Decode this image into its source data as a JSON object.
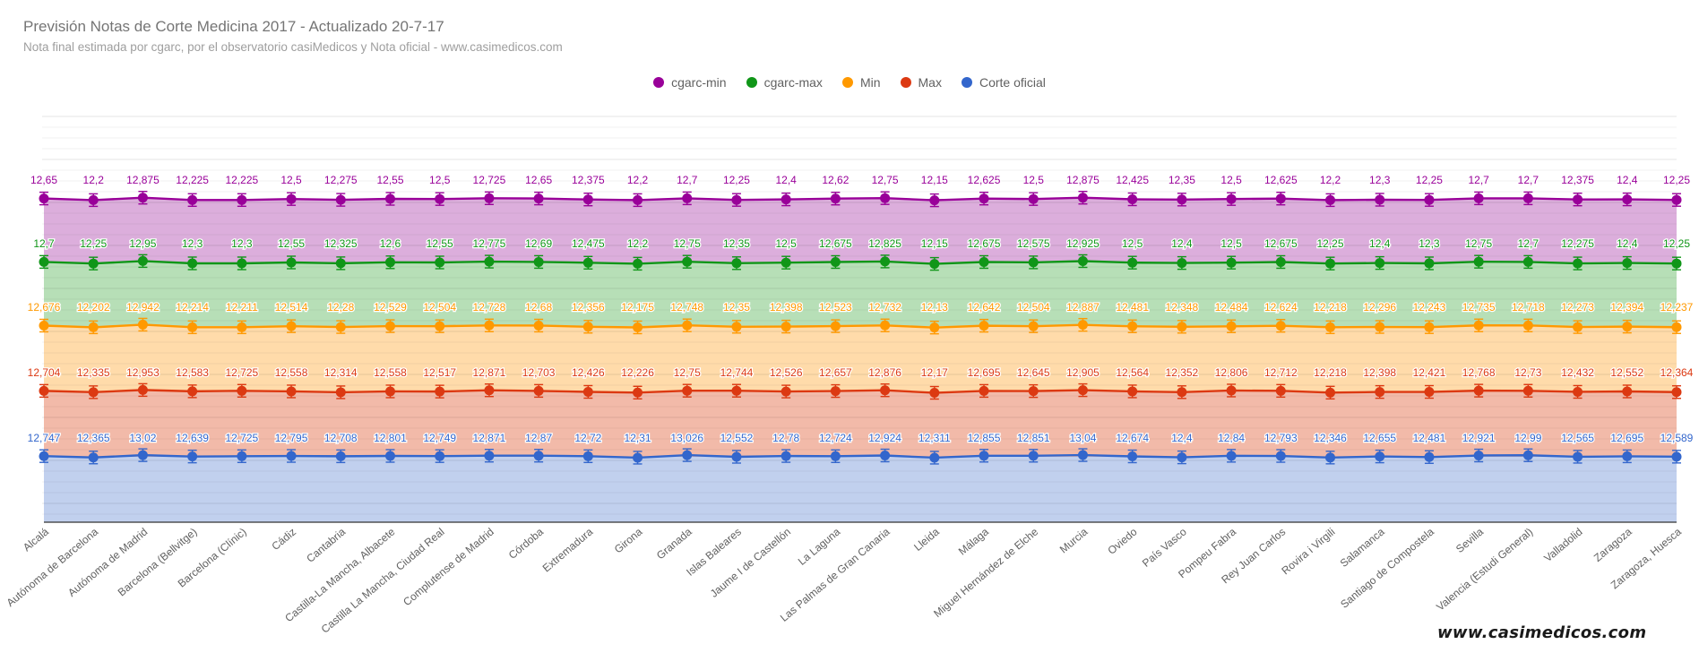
{
  "title": "Previsión Notas de Corte Medicina 2017 - Actualizado 20-7-17",
  "subtitle": "Nota final estimada por cgarc, por el observatorio casiMedicos y Nota oficial  - www.casimedicos.com",
  "watermark": "www.casimedicos.com",
  "chart_data": {
    "type": "line",
    "categories": [
      "Alcalá",
      "Autónoma de Barcelona",
      "Autónoma de Madrid",
      "Barcelona (Bellvitge)",
      "Barcelona (Clínic)",
      "Cádiz",
      "Cantabria",
      "Castilla-La Mancha, Albacete",
      "Castilla La Mancha, Ciudad Real",
      "Complutense de Madrid",
      "Córdoba",
      "Extremadura",
      "Girona",
      "Granada",
      "Islas Baleares",
      "Jaume I de Castellón",
      "La Laguna",
      "Las Palmas de Gran Canaria",
      "Lleida",
      "Málaga",
      "Miguel Hernández de Elche",
      "Murcia",
      "Oviedo",
      "País Vasco",
      "Pompeu Fabra",
      "Rey Juan Carlos",
      "Rovira i Virgili",
      "Salamanca",
      "Santiago de Compostela",
      "Sevilla",
      "Valencia (Estudi General)",
      "Valladolid",
      "Zaragoza",
      "Zaragoza, Huesca"
    ],
    "series": [
      {
        "name": "cgarc-min",
        "color": "#990099",
        "values": [
          12.65,
          12.2,
          12.875,
          12.225,
          12.225,
          12.5,
          12.275,
          12.55,
          12.5,
          12.725,
          12.65,
          12.375,
          12.2,
          12.7,
          12.25,
          12.4,
          12.62,
          12.75,
          12.15,
          12.625,
          12.5,
          12.875,
          12.425,
          12.35,
          12.5,
          12.625,
          12.2,
          12.3,
          12.25,
          12.7,
          12.7,
          12.375,
          12.4,
          12.25
        ],
        "labels": [
          "12,65",
          "12,2",
          "12,875",
          "12,225",
          "12,225",
          "12,5",
          "12,275",
          "12,55",
          "12,5",
          "12,725",
          "12,65",
          "12,375",
          "12,2",
          "12,7",
          "12,25",
          "12,4",
          "12,62",
          "12,75",
          "12,15",
          "12,625",
          "12,5",
          "12,875",
          "12,425",
          "12,35",
          "12,5",
          "12,625",
          "12,2",
          "12,3",
          "12,25",
          "12,7",
          "12,7",
          "12,375",
          "12,4",
          "12,25"
        ]
      },
      {
        "name": "cgarc-max",
        "color": "#109618",
        "values": [
          12.7,
          12.25,
          12.95,
          12.3,
          12.3,
          12.55,
          12.325,
          12.6,
          12.55,
          12.775,
          12.69,
          12.475,
          12.2,
          12.75,
          12.35,
          12.5,
          12.675,
          12.825,
          12.15,
          12.675,
          12.575,
          12.925,
          12.5,
          12.4,
          12.5,
          12.675,
          12.25,
          12.4,
          12.3,
          12.75,
          12.7,
          12.275,
          12.4,
          12.25
        ],
        "labels": [
          "12,7",
          "12,25",
          "12,95",
          "12,3",
          "12,3",
          "12,55",
          "12,325",
          "12,6",
          "12,55",
          "12,775",
          "12,69",
          "12,475",
          "12,2",
          "12,75",
          "12,35",
          "12,5",
          "12,675",
          "12,825",
          "12,15",
          "12,675",
          "12,575",
          "12,925",
          "12,5",
          "12,4",
          "12,5",
          "12,675",
          "12,25",
          "12,4",
          "12,3",
          "12,75",
          "12,7",
          "12,275",
          "12,4",
          "12,25"
        ]
      },
      {
        "name": "Min",
        "color": "#ff9900",
        "values": [
          12.676,
          12.202,
          12.942,
          12.214,
          12.211,
          12.514,
          12.28,
          12.529,
          12.504,
          12.728,
          12.68,
          12.356,
          12.175,
          12.748,
          12.35,
          12.398,
          12.523,
          12.732,
          12.13,
          12.642,
          12.504,
          12.887,
          12.481,
          12.348,
          12.484,
          12.624,
          12.218,
          12.296,
          12.243,
          12.735,
          12.718,
          12.273,
          12.394,
          12.237
        ],
        "labels": [
          "12,676",
          "12,202",
          "12,942",
          "12,214",
          "12,211",
          "12,514",
          "12,28",
          "12,529",
          "12,504",
          "12,728",
          "12,68",
          "12,356",
          "12,175",
          "12,748",
          "12,35",
          "12,398",
          "12,523",
          "12,732",
          "12,13",
          "12,642",
          "12,504",
          "12,887",
          "12,481",
          "12,348",
          "12,484",
          "12,624",
          "12,218",
          "12,296",
          "12,243",
          "12,735",
          "12,718",
          "12,273",
          "12,394",
          "12,237"
        ]
      },
      {
        "name": "Max",
        "color": "#dc3912",
        "values": [
          12.704,
          12.335,
          12.953,
          12.583,
          12.725,
          12.558,
          12.314,
          12.558,
          12.517,
          12.871,
          12.703,
          12.426,
          12.226,
          12.75,
          12.744,
          12.526,
          12.657,
          12.876,
          12.17,
          12.695,
          12.645,
          12.905,
          12.564,
          12.352,
          12.806,
          12.712,
          12.218,
          12.398,
          12.421,
          12.768,
          12.73,
          12.432,
          12.552,
          12.364
        ],
        "labels": [
          "12,704",
          "12,335",
          "12,953",
          "12,583",
          "12,725",
          "12,558",
          "12,314",
          "12,558",
          "12,517",
          "12,871",
          "12,703",
          "12,426",
          "12,226",
          "12,75",
          "12,744",
          "12,526",
          "12,657",
          "12,876",
          "12,17",
          "12,695",
          "12,645",
          "12,905",
          "12,564",
          "12,352",
          "12,806",
          "12,712",
          "12,218",
          "12,398",
          "12,421",
          "12,768",
          "12,73",
          "12,432",
          "12,552",
          "12,364"
        ]
      },
      {
        "name": "Corte oficial",
        "color": "#3366cc",
        "values": [
          12.747,
          12.365,
          13.02,
          12.639,
          12.725,
          12.795,
          12.708,
          12.801,
          12.749,
          12.871,
          12.87,
          12.72,
          12.31,
          13.026,
          12.552,
          12.78,
          12.724,
          12.924,
          12.311,
          12.855,
          12.851,
          13.04,
          12.674,
          12.4,
          12.84,
          12.793,
          12.346,
          12.655,
          12.481,
          12.921,
          12.99,
          12.565,
          12.695,
          12.589
        ],
        "labels": [
          "12,747",
          "12,365",
          "13,02",
          "12,639",
          "12,725",
          "12,795",
          "12,708",
          "12,801",
          "12,749",
          "12,871",
          "12,87",
          "12,72",
          "12,31",
          "13,026",
          "12,552",
          "12,78",
          "12,724",
          "12,924",
          "12,311",
          "12,855",
          "12,851",
          "13,04",
          "12,674",
          "12,4",
          "12,84",
          "12,793",
          "12,346",
          "12,655",
          "12,481",
          "12,921",
          "12,99",
          "12,565",
          "12,695",
          "12,589"
        ]
      }
    ],
    "fill_colors": [
      "#dcaedc",
      "#b7dfb7",
      "#ffdbaa",
      "#f2baa9",
      "#c1d0ee"
    ],
    "legend_position": "top-center",
    "grid": true
  }
}
